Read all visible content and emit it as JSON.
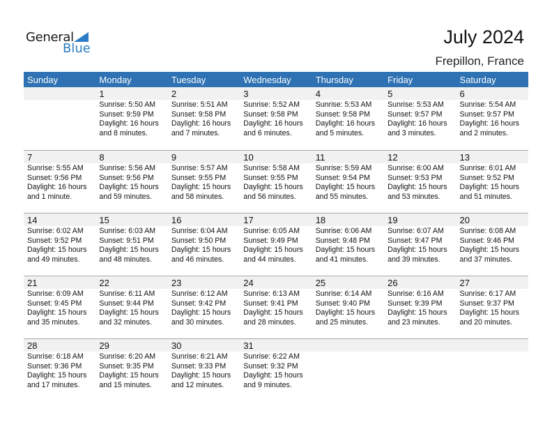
{
  "logo": {
    "line1": "General",
    "line2": "Blue"
  },
  "title": "July 2024",
  "location": "Frepillon, France",
  "colors": {
    "header": "#2e72b3",
    "date_band": "#f1f1f1",
    "logo_blue": "#2a7cc4"
  },
  "weekdays": [
    "Sunday",
    "Monday",
    "Tuesday",
    "Wednesday",
    "Thursday",
    "Friday",
    "Saturday"
  ],
  "weeks": [
    [
      null,
      {
        "day": "1",
        "sunrise": "Sunrise: 5:50 AM",
        "sunset": "Sunset: 9:59 PM",
        "daylight": "Daylight: 16 hours",
        "minutes": "and 8 minutes."
      },
      {
        "day": "2",
        "sunrise": "Sunrise: 5:51 AM",
        "sunset": "Sunset: 9:58 PM",
        "daylight": "Daylight: 16 hours",
        "minutes": "and 7 minutes."
      },
      {
        "day": "3",
        "sunrise": "Sunrise: 5:52 AM",
        "sunset": "Sunset: 9:58 PM",
        "daylight": "Daylight: 16 hours",
        "minutes": "and 6 minutes."
      },
      {
        "day": "4",
        "sunrise": "Sunrise: 5:53 AM",
        "sunset": "Sunset: 9:58 PM",
        "daylight": "Daylight: 16 hours",
        "minutes": "and 5 minutes."
      },
      {
        "day": "5",
        "sunrise": "Sunrise: 5:53 AM",
        "sunset": "Sunset: 9:57 PM",
        "daylight": "Daylight: 16 hours",
        "minutes": "and 3 minutes."
      },
      {
        "day": "6",
        "sunrise": "Sunrise: 5:54 AM",
        "sunset": "Sunset: 9:57 PM",
        "daylight": "Daylight: 16 hours",
        "minutes": "and 2 minutes."
      }
    ],
    [
      {
        "day": "7",
        "sunrise": "Sunrise: 5:55 AM",
        "sunset": "Sunset: 9:56 PM",
        "daylight": "Daylight: 16 hours",
        "minutes": "and 1 minute."
      },
      {
        "day": "8",
        "sunrise": "Sunrise: 5:56 AM",
        "sunset": "Sunset: 9:56 PM",
        "daylight": "Daylight: 15 hours",
        "minutes": "and 59 minutes."
      },
      {
        "day": "9",
        "sunrise": "Sunrise: 5:57 AM",
        "sunset": "Sunset: 9:55 PM",
        "daylight": "Daylight: 15 hours",
        "minutes": "and 58 minutes."
      },
      {
        "day": "10",
        "sunrise": "Sunrise: 5:58 AM",
        "sunset": "Sunset: 9:55 PM",
        "daylight": "Daylight: 15 hours",
        "minutes": "and 56 minutes."
      },
      {
        "day": "11",
        "sunrise": "Sunrise: 5:59 AM",
        "sunset": "Sunset: 9:54 PM",
        "daylight": "Daylight: 15 hours",
        "minutes": "and 55 minutes."
      },
      {
        "day": "12",
        "sunrise": "Sunrise: 6:00 AM",
        "sunset": "Sunset: 9:53 PM",
        "daylight": "Daylight: 15 hours",
        "minutes": "and 53 minutes."
      },
      {
        "day": "13",
        "sunrise": "Sunrise: 6:01 AM",
        "sunset": "Sunset: 9:52 PM",
        "daylight": "Daylight: 15 hours",
        "minutes": "and 51 minutes."
      }
    ],
    [
      {
        "day": "14",
        "sunrise": "Sunrise: 6:02 AM",
        "sunset": "Sunset: 9:52 PM",
        "daylight": "Daylight: 15 hours",
        "minutes": "and 49 minutes."
      },
      {
        "day": "15",
        "sunrise": "Sunrise: 6:03 AM",
        "sunset": "Sunset: 9:51 PM",
        "daylight": "Daylight: 15 hours",
        "minutes": "and 48 minutes."
      },
      {
        "day": "16",
        "sunrise": "Sunrise: 6:04 AM",
        "sunset": "Sunset: 9:50 PM",
        "daylight": "Daylight: 15 hours",
        "minutes": "and 46 minutes."
      },
      {
        "day": "17",
        "sunrise": "Sunrise: 6:05 AM",
        "sunset": "Sunset: 9:49 PM",
        "daylight": "Daylight: 15 hours",
        "minutes": "and 44 minutes."
      },
      {
        "day": "18",
        "sunrise": "Sunrise: 6:06 AM",
        "sunset": "Sunset: 9:48 PM",
        "daylight": "Daylight: 15 hours",
        "minutes": "and 41 minutes."
      },
      {
        "day": "19",
        "sunrise": "Sunrise: 6:07 AM",
        "sunset": "Sunset: 9:47 PM",
        "daylight": "Daylight: 15 hours",
        "minutes": "and 39 minutes."
      },
      {
        "day": "20",
        "sunrise": "Sunrise: 6:08 AM",
        "sunset": "Sunset: 9:46 PM",
        "daylight": "Daylight: 15 hours",
        "minutes": "and 37 minutes."
      }
    ],
    [
      {
        "day": "21",
        "sunrise": "Sunrise: 6:09 AM",
        "sunset": "Sunset: 9:45 PM",
        "daylight": "Daylight: 15 hours",
        "minutes": "and 35 minutes."
      },
      {
        "day": "22",
        "sunrise": "Sunrise: 6:11 AM",
        "sunset": "Sunset: 9:44 PM",
        "daylight": "Daylight: 15 hours",
        "minutes": "and 32 minutes."
      },
      {
        "day": "23",
        "sunrise": "Sunrise: 6:12 AM",
        "sunset": "Sunset: 9:42 PM",
        "daylight": "Daylight: 15 hours",
        "minutes": "and 30 minutes."
      },
      {
        "day": "24",
        "sunrise": "Sunrise: 6:13 AM",
        "sunset": "Sunset: 9:41 PM",
        "daylight": "Daylight: 15 hours",
        "minutes": "and 28 minutes."
      },
      {
        "day": "25",
        "sunrise": "Sunrise: 6:14 AM",
        "sunset": "Sunset: 9:40 PM",
        "daylight": "Daylight: 15 hours",
        "minutes": "and 25 minutes."
      },
      {
        "day": "26",
        "sunrise": "Sunrise: 6:16 AM",
        "sunset": "Sunset: 9:39 PM",
        "daylight": "Daylight: 15 hours",
        "minutes": "and 23 minutes."
      },
      {
        "day": "27",
        "sunrise": "Sunrise: 6:17 AM",
        "sunset": "Sunset: 9:37 PM",
        "daylight": "Daylight: 15 hours",
        "minutes": "and 20 minutes."
      }
    ],
    [
      {
        "day": "28",
        "sunrise": "Sunrise: 6:18 AM",
        "sunset": "Sunset: 9:36 PM",
        "daylight": "Daylight: 15 hours",
        "minutes": "and 17 minutes."
      },
      {
        "day": "29",
        "sunrise": "Sunrise: 6:20 AM",
        "sunset": "Sunset: 9:35 PM",
        "daylight": "Daylight: 15 hours",
        "minutes": "and 15 minutes."
      },
      {
        "day": "30",
        "sunrise": "Sunrise: 6:21 AM",
        "sunset": "Sunset: 9:33 PM",
        "daylight": "Daylight: 15 hours",
        "minutes": "and 12 minutes."
      },
      {
        "day": "31",
        "sunrise": "Sunrise: 6:22 AM",
        "sunset": "Sunset: 9:32 PM",
        "daylight": "Daylight: 15 hours",
        "minutes": "and 9 minutes."
      },
      null,
      null,
      null
    ]
  ]
}
